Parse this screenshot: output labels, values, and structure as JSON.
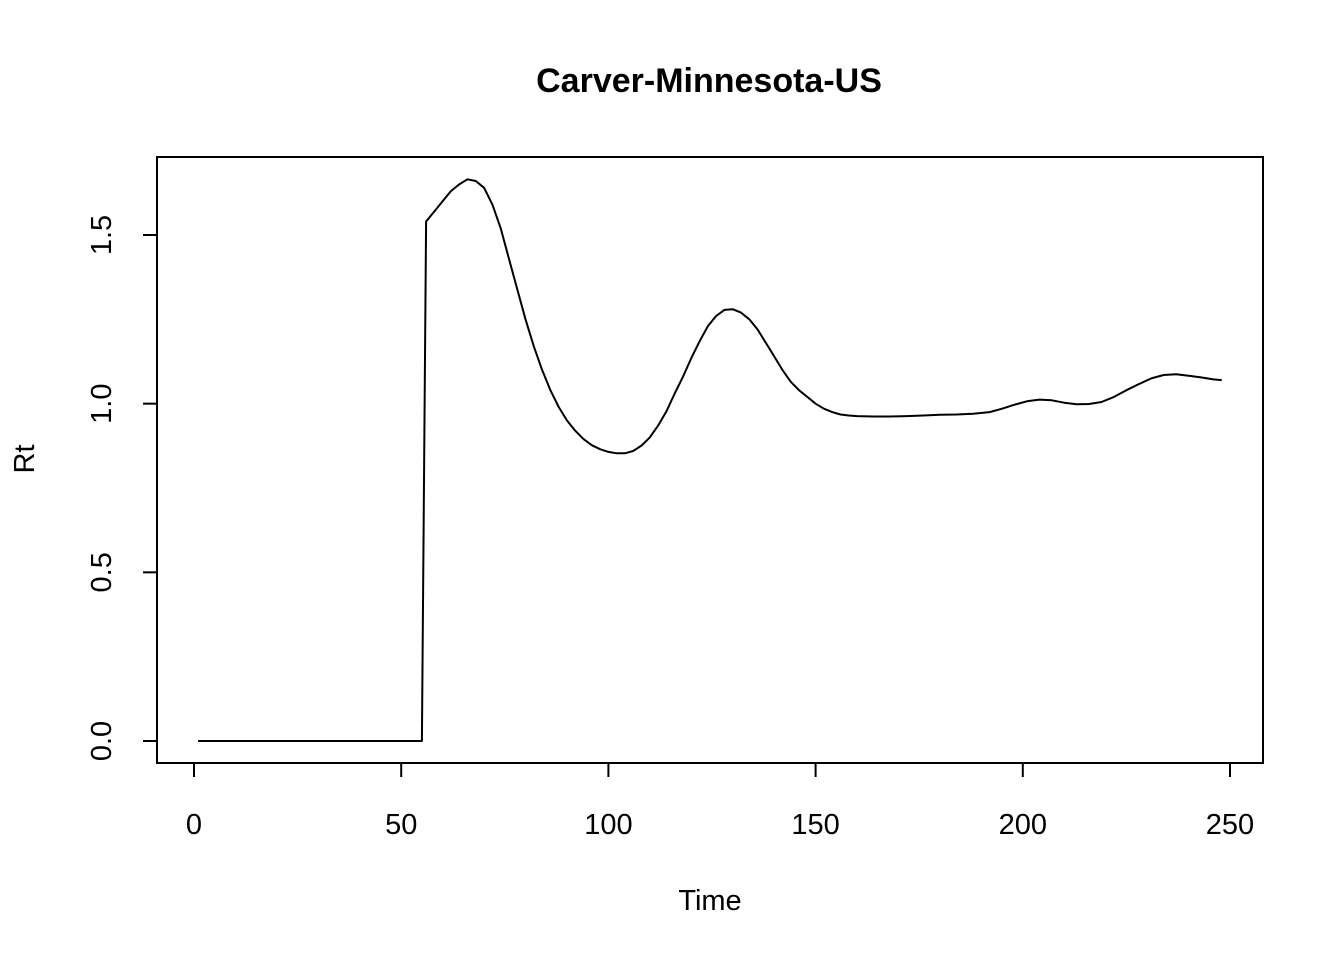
{
  "chart_data": {
    "type": "line",
    "title": "Carver-Minnesota-US",
    "xlabel": "Time",
    "ylabel": "Rt",
    "xlim": [
      0,
      250
    ],
    "ylim": [
      0.0,
      1.5
    ],
    "x_ticks": [
      "0",
      "50",
      "100",
      "150",
      "200",
      "250"
    ],
    "y_ticks": [
      "0.0",
      "0.5",
      "1.0",
      "1.5"
    ],
    "grid": false,
    "legend": "none",
    "line_color": "#000000",
    "series": [
      {
        "x": [
          1,
          55,
          56,
          58,
          60,
          62,
          64,
          66,
          68,
          70,
          72,
          74,
          76,
          78,
          80,
          82,
          84,
          86,
          88,
          90,
          92,
          94,
          96,
          98,
          100,
          102,
          104,
          106,
          108,
          110,
          112,
          114,
          116,
          118,
          120,
          122,
          124,
          126,
          128,
          130,
          132,
          134,
          136,
          138,
          140,
          142,
          144,
          146,
          148,
          150,
          152,
          154,
          156,
          158,
          160,
          164,
          168,
          172,
          176,
          180,
          184,
          188,
          192,
          195,
          198,
          201,
          204,
          207,
          210,
          213,
          216,
          219,
          222,
          225,
          228,
          231,
          234,
          237,
          240,
          243,
          246,
          248
        ],
        "y": [
          0.0,
          0.0,
          1.54,
          1.57,
          1.6,
          1.63,
          1.65,
          1.665,
          1.66,
          1.64,
          1.59,
          1.52,
          1.43,
          1.34,
          1.25,
          1.17,
          1.1,
          1.04,
          0.99,
          0.95,
          0.92,
          0.895,
          0.877,
          0.865,
          0.857,
          0.853,
          0.853,
          0.86,
          0.876,
          0.9,
          0.935,
          0.977,
          1.03,
          1.08,
          1.135,
          1.185,
          1.23,
          1.26,
          1.278,
          1.28,
          1.27,
          1.25,
          1.22,
          1.18,
          1.14,
          1.1,
          1.065,
          1.04,
          1.02,
          1.0,
          0.985,
          0.975,
          0.968,
          0.965,
          0.963,
          0.962,
          0.962,
          0.963,
          0.965,
          0.967,
          0.968,
          0.97,
          0.975,
          0.985,
          0.997,
          1.007,
          1.012,
          1.01,
          1.003,
          0.998,
          0.999,
          1.005,
          1.02,
          1.04,
          1.058,
          1.075,
          1.085,
          1.087,
          1.083,
          1.078,
          1.072,
          1.07
        ]
      }
    ]
  }
}
